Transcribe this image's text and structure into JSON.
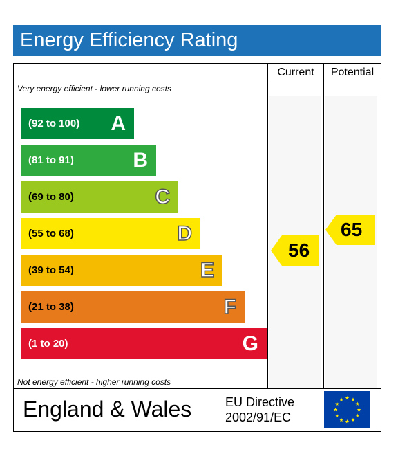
{
  "title": "Energy Efficiency Rating",
  "headers": {
    "current": "Current",
    "potential": "Potential"
  },
  "notes": {
    "top": "Very energy efficient - lower running costs",
    "bottom": "Not energy efficient - higher running costs"
  },
  "footer": {
    "country": "England & Wales",
    "directive_line1": "EU Directive",
    "directive_line2": "2002/91/EC",
    "flag": "eu-flag-icon"
  },
  "chart_data": {
    "type": "bar",
    "categories": [
      "A",
      "B",
      "C",
      "D",
      "E",
      "F",
      "G"
    ],
    "ranges": [
      "(92 to 100)",
      "(81 to 91)",
      "(69 to 80)",
      "(55 to 68)",
      "(39 to 54)",
      "(21 to 38)",
      "(1 to 20)"
    ],
    "colors": [
      "#008a3c",
      "#2eaa3f",
      "#9bc81e",
      "#ffe800",
      "#f5bb00",
      "#e77b1c",
      "#e1122d"
    ],
    "current": 56,
    "potential": 65,
    "arrow_color": "#ffe800"
  }
}
